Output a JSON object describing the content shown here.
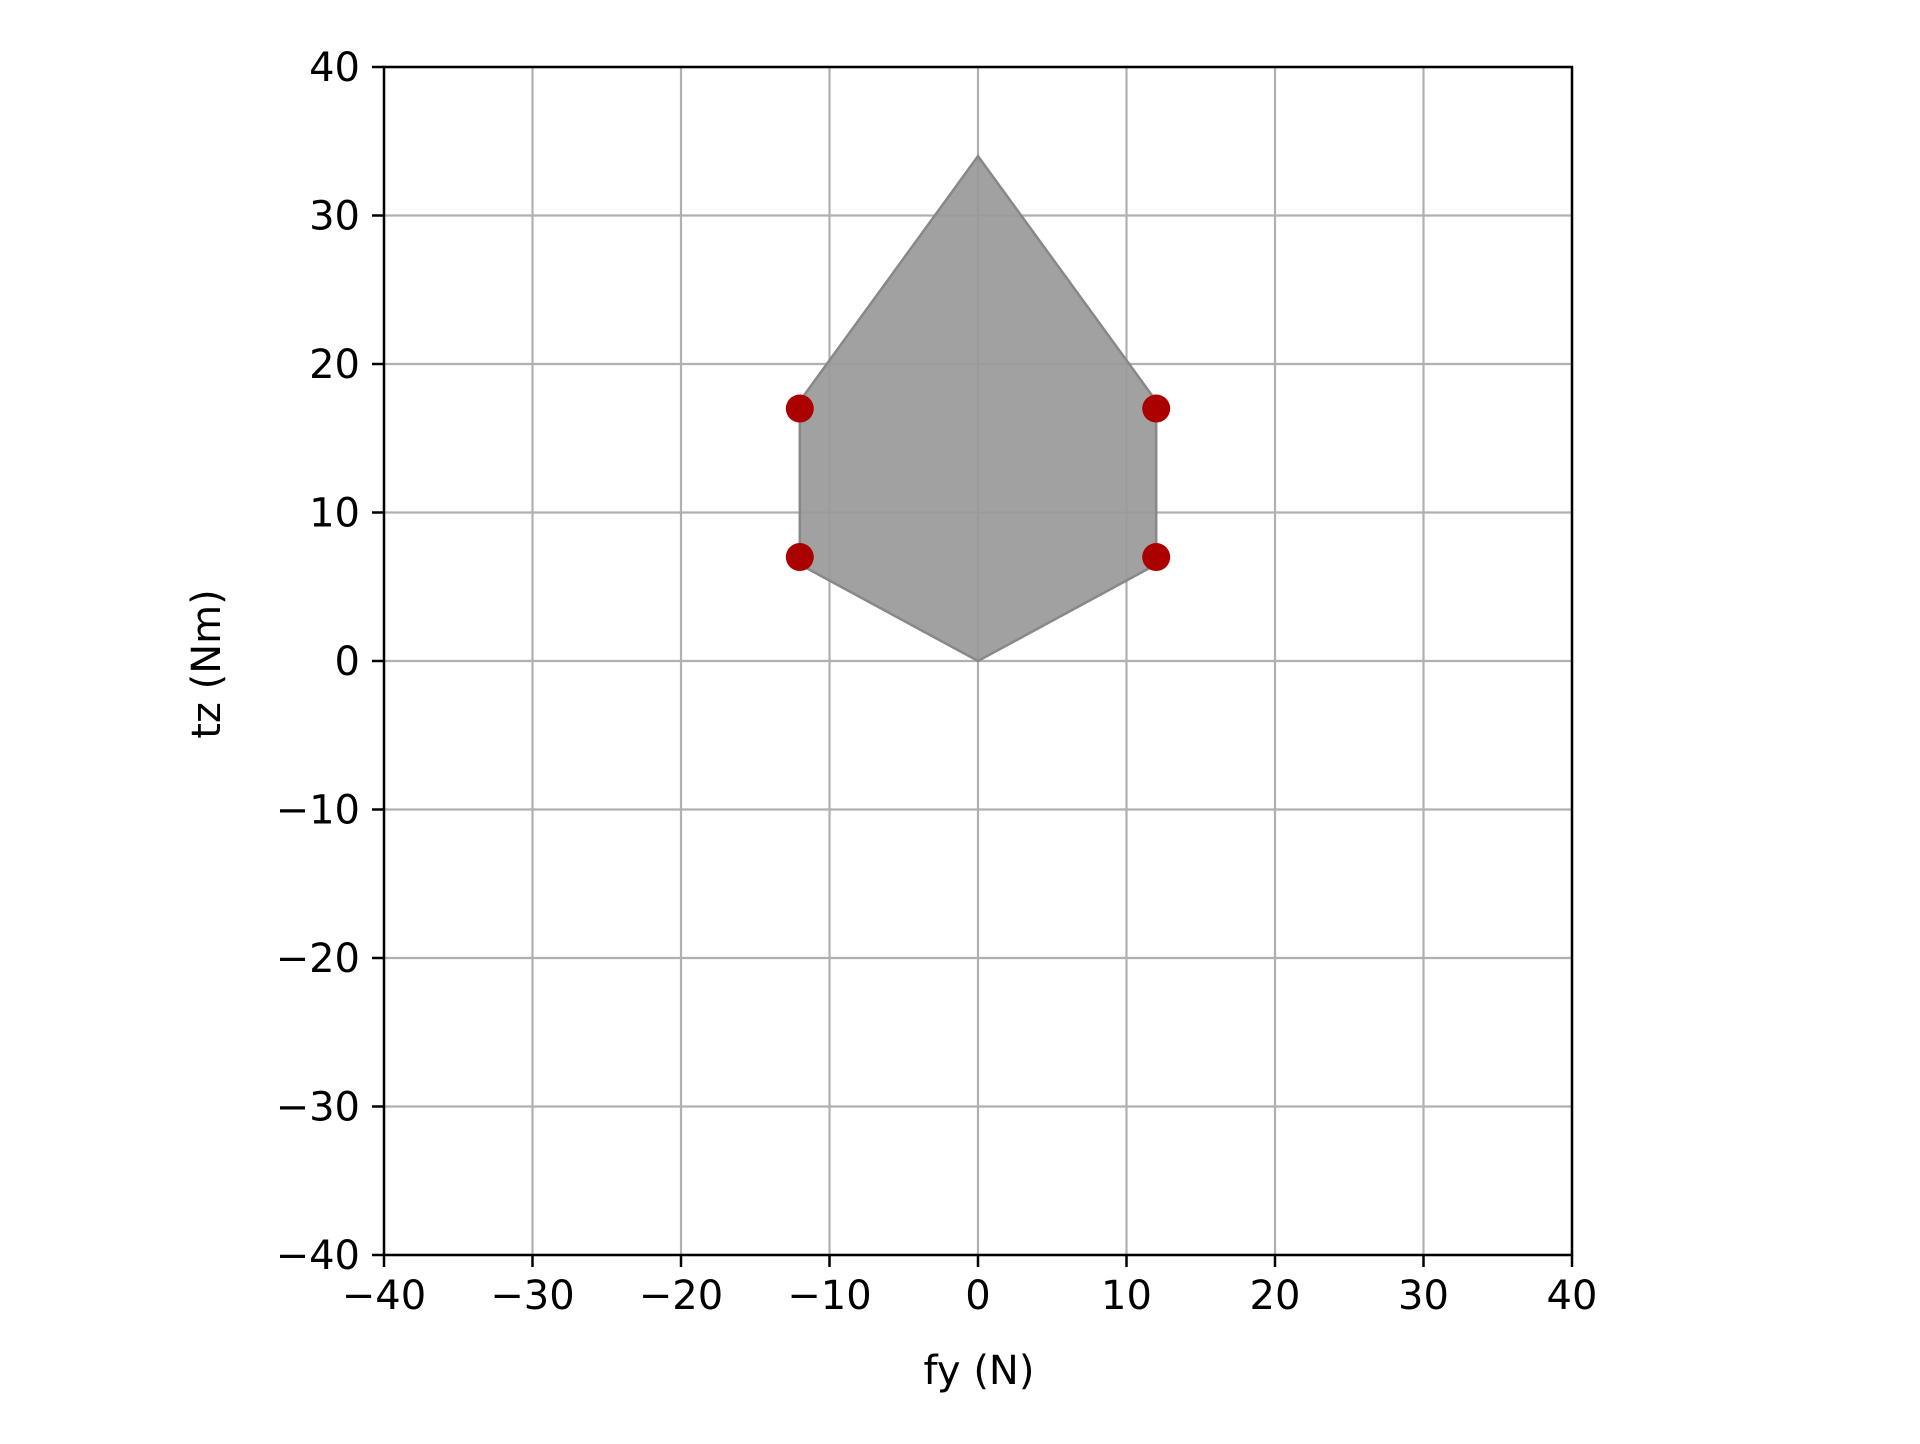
{
  "chart_data": {
    "type": "scatter",
    "title": "",
    "xlabel": "fy (N)",
    "ylabel": "tz (Nm)",
    "xlim": [
      -40,
      40
    ],
    "ylim": [
      -40,
      40
    ],
    "x_ticks": [
      -40,
      -30,
      -20,
      -10,
      0,
      10,
      20,
      30,
      40
    ],
    "y_ticks": [
      -40,
      -30,
      -20,
      -10,
      0,
      10,
      20,
      30,
      40
    ],
    "x_tick_labels": [
      "−40",
      "−30",
      "−20",
      "−10",
      "0",
      "10",
      "20",
      "30",
      "40"
    ],
    "y_tick_labels": [
      "−40",
      "−30",
      "−20",
      "−10",
      "0",
      "10",
      "20",
      "30",
      "40"
    ],
    "grid": true,
    "polygon": {
      "vertices": [
        [
          0,
          34
        ],
        [
          12,
          17.5
        ],
        [
          12,
          6.5
        ],
        [
          0,
          0
        ],
        [
          -12,
          6.5
        ],
        [
          -12,
          17.5
        ]
      ],
      "fill_color": "#999999",
      "edge_color": "#888888"
    },
    "points": {
      "x": [
        -12,
        12,
        -12,
        12
      ],
      "y": [
        17,
        17,
        7,
        7
      ],
      "color": "#aa0000"
    }
  }
}
